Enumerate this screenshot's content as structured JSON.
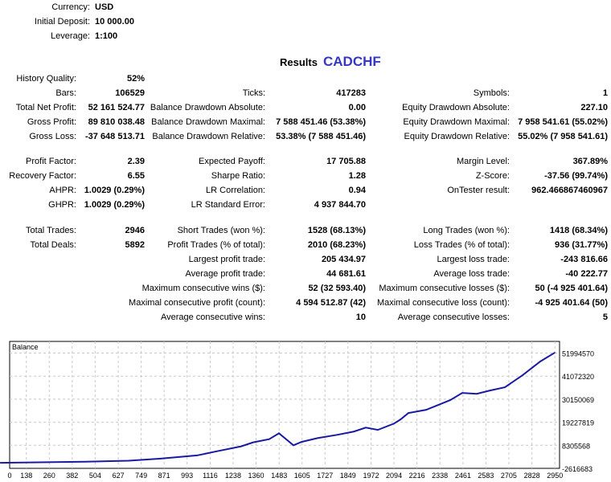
{
  "settings": [
    {
      "label": "Currency:",
      "value": "USD"
    },
    {
      "label": "Initial Deposit:",
      "value": "10 000.00"
    },
    {
      "label": "Leverage:",
      "value": "1:100"
    }
  ],
  "results_title": "Results",
  "symbol": "CADCHF",
  "colors": {
    "symbol": "#3535c8",
    "balance_line": "#1a1aa0",
    "grid": "#c8c8c8"
  },
  "rows": [
    [
      {
        "label": "History Quality:",
        "value": "52%"
      },
      null,
      null
    ],
    [
      {
        "label": "Bars:",
        "value": "106529"
      },
      {
        "label": "Ticks:",
        "value": "417283"
      },
      {
        "label": "Symbols:",
        "value": "1"
      }
    ],
    [
      {
        "label": "Total Net Profit:",
        "value": "52 161 524.77"
      },
      {
        "label": "Balance Drawdown Absolute:",
        "value": "0.00"
      },
      {
        "label": "Equity Drawdown Absolute:",
        "value": "227.10"
      }
    ],
    [
      {
        "label": "Gross Profit:",
        "value": "89 810 038.48"
      },
      {
        "label": "Balance Drawdown Maximal:",
        "value": "7 588 451.46 (53.38%)"
      },
      {
        "label": "Equity Drawdown Maximal:",
        "value": "7 958 541.61 (55.02%)"
      }
    ],
    [
      {
        "label": "Gross Loss:",
        "value": "-37 648 513.71"
      },
      {
        "label": "Balance Drawdown Relative:",
        "value": "53.38% (7 588 451.46)"
      },
      {
        "label": "Equity Drawdown Relative:",
        "value": "55.02% (7 958 541.61)"
      }
    ],
    [
      {
        "label": "Profit Factor:",
        "value": "2.39"
      },
      {
        "label": "Expected Payoff:",
        "value": "17 705.88"
      },
      {
        "label": "Margin Level:",
        "value": "367.89%"
      }
    ],
    [
      {
        "label": "Recovery Factor:",
        "value": "6.55"
      },
      {
        "label": "Sharpe Ratio:",
        "value": "1.28"
      },
      {
        "label": "Z-Score:",
        "value": "-37.56 (99.74%)"
      }
    ],
    [
      {
        "label": "AHPR:",
        "value": "1.0029 (0.29%)"
      },
      {
        "label": "LR Correlation:",
        "value": "0.94"
      },
      {
        "label": "OnTester result:",
        "value": "962.466867460967"
      }
    ],
    [
      {
        "label": "GHPR:",
        "value": "1.0029 (0.29%)"
      },
      {
        "label": "LR Standard Error:",
        "value": "4 937 844.70"
      },
      null
    ],
    [
      {
        "label": "Total Trades:",
        "value": "2946"
      },
      {
        "label": "Short Trades (won %):",
        "value": "1528 (68.13%)"
      },
      {
        "label": "Long Trades (won %):",
        "value": "1418 (68.34%)"
      }
    ],
    [
      {
        "label": "Total Deals:",
        "value": "5892"
      },
      {
        "label": "Profit Trades (% of total):",
        "value": "2010 (68.23%)"
      },
      {
        "label": "Loss Trades (% of total):",
        "value": "936 (31.77%)"
      }
    ],
    [
      null,
      {
        "label": "Largest profit trade:",
        "value": "205 434.97"
      },
      {
        "label": "Largest loss trade:",
        "value": "-243 816.66"
      }
    ],
    [
      null,
      {
        "label": "Average profit trade:",
        "value": "44 681.61"
      },
      {
        "label": "Average loss trade:",
        "value": "-40 222.77"
      }
    ],
    [
      null,
      {
        "label": "Maximum consecutive wins ($):",
        "value": "52 (32 593.40)"
      },
      {
        "label": "Maximum consecutive losses ($):",
        "value": "50 (-4 925 401.64)"
      }
    ],
    [
      null,
      {
        "label": "Maximal consecutive profit (count):",
        "value": "4 594 512.87 (42)"
      },
      {
        "label": "Maximal consecutive loss (count):",
        "value": "-4 925 401.64 (50)"
      }
    ],
    [
      null,
      {
        "label": "Average consecutive wins:",
        "value": "10"
      },
      {
        "label": "Average consecutive losses:",
        "value": "5"
      }
    ]
  ],
  "chart_data": {
    "type": "line",
    "title": "Balance",
    "grid": true,
    "x_ticks": [
      "0",
      "138",
      "260",
      "382",
      "504",
      "627",
      "749",
      "871",
      "993",
      "1116",
      "1238",
      "1360",
      "1483",
      "1605",
      "1727",
      "1849",
      "1972",
      "2094",
      "2216",
      "2338",
      "2461",
      "2583",
      "2705",
      "2828",
      "2950"
    ],
    "y_ticks": [
      "51994570",
      "41072320",
      "30150069",
      "19227819",
      "8305568",
      "-2616683"
    ],
    "ylim": [
      -2616683,
      55000000
    ],
    "series": [
      {
        "x": [
          0,
          450,
          682,
          853,
          1046,
          1153,
          1281,
          1345,
          1430,
          1482,
          1559,
          1602,
          1687,
          1794,
          1880,
          1944,
          2008,
          2094,
          2128,
          2171,
          2265,
          2393,
          2457,
          2534,
          2607,
          2684,
          2778,
          2872,
          2949
        ],
        "y": [
          10000,
          500000,
          1000000,
          2000000,
          3500000,
          5500000,
          7800000,
          9700000,
          11200000,
          14000000,
          8300000,
          9900000,
          11700000,
          13300000,
          14800000,
          16700000,
          15600000,
          18600000,
          20500000,
          23600000,
          25100000,
          29700000,
          33100000,
          32700000,
          34300000,
          35800000,
          41500000,
          48000000,
          52161524
        ]
      }
    ]
  }
}
